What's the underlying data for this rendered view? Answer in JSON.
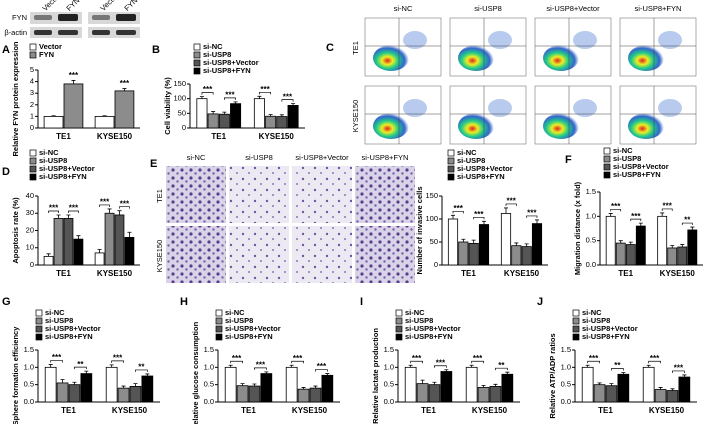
{
  "images": {
    "blot": {
      "panel": "A",
      "rows": [
        "FYN",
        "β-actin"
      ],
      "lanes": [
        "Vector",
        "FYN",
        "Vector",
        "FYN"
      ]
    },
    "flow": {
      "panel": "C",
      "columns": [
        "si-NC",
        "si-USP8",
        "si-USP8+Vector",
        "si-USP8+FYN"
      ],
      "rows": [
        "TE1",
        "KYSE150"
      ]
    },
    "invasion": {
      "panel": "E",
      "columns": [
        "si-NC",
        "si-USP8",
        "si-USP8+Vector",
        "si-USP8+FYN"
      ],
      "rows": [
        "TE1",
        "KYSE150"
      ]
    }
  },
  "chart_data": [
    {
      "type": "bar",
      "panel": "A",
      "ylabel": "Relative FYN protein expression",
      "categories": [
        "TE1",
        "KYSE150"
      ],
      "series": [
        {
          "name": "Vector",
          "color": "#ffffff",
          "values": [
            1,
            1
          ],
          "errors": [
            0.05,
            0.05
          ]
        },
        {
          "name": "FYN",
          "color": "#8c8c8c",
          "values": [
            3.8,
            3.2
          ],
          "errors": [
            0.3,
            0.2
          ]
        }
      ],
      "ylim": [
        0,
        5
      ],
      "yticks": [
        0,
        1,
        2,
        3,
        4,
        5
      ],
      "annotations": [
        {
          "category": 0,
          "bars": [
            1
          ],
          "text": "***"
        },
        {
          "category": 1,
          "bars": [
            1
          ],
          "text": "***"
        }
      ]
    },
    {
      "type": "bar",
      "panel": "B",
      "ylabel": "Cell viability (%)",
      "categories": [
        "TE1",
        "KYSE150"
      ],
      "series": [
        {
          "name": "si-NC",
          "color": "#ffffff",
          "values": [
            100,
            100
          ],
          "errors": [
            7,
            8
          ]
        },
        {
          "name": "si-USP8",
          "color": "#8c8c8c",
          "values": [
            48,
            40
          ],
          "errors": [
            8,
            6
          ]
        },
        {
          "name": "si-USP8+Vector",
          "color": "#555555",
          "values": [
            47,
            39
          ],
          "errors": [
            7,
            6
          ]
        },
        {
          "name": "si-USP8+FYN",
          "color": "#000000",
          "values": [
            83,
            77
          ],
          "errors": [
            6,
            6
          ]
        }
      ],
      "ylim": [
        0,
        150
      ],
      "yticks": [
        0,
        50,
        100,
        150
      ],
      "annotations": [
        {
          "category": 0,
          "bars": [
            0,
            1
          ],
          "text": "***"
        },
        {
          "category": 0,
          "bars": [
            2,
            3
          ],
          "text": "***"
        },
        {
          "category": 1,
          "bars": [
            0,
            1
          ],
          "text": "***"
        },
        {
          "category": 1,
          "bars": [
            2,
            3
          ],
          "text": "***"
        }
      ]
    },
    {
      "type": "bar",
      "panel": "D",
      "ylabel": "Apoptosis rate (%)",
      "categories": [
        "TE1",
        "KYSE150"
      ],
      "series": [
        {
          "name": "si-NC",
          "color": "#ffffff",
          "values": [
            5,
            7
          ],
          "errors": [
            1.5,
            2
          ]
        },
        {
          "name": "si-USP8",
          "color": "#8c8c8c",
          "values": [
            27,
            30
          ],
          "errors": [
            2,
            2.5
          ]
        },
        {
          "name": "si-USP8+Vector",
          "color": "#555555",
          "values": [
            27,
            29
          ],
          "errors": [
            2,
            2.5
          ]
        },
        {
          "name": "si-USP8+FYN",
          "color": "#000000",
          "values": [
            15,
            16
          ],
          "errors": [
            2,
            3
          ]
        }
      ],
      "ylim": [
        0,
        40
      ],
      "yticks": [
        0,
        10,
        20,
        30,
        40
      ],
      "annotations": [
        {
          "category": 0,
          "bars": [
            0,
            1
          ],
          "text": "***"
        },
        {
          "category": 0,
          "bars": [
            2,
            3
          ],
          "text": "***"
        },
        {
          "category": 1,
          "bars": [
            0,
            1
          ],
          "text": "***"
        },
        {
          "category": 1,
          "bars": [
            2,
            3
          ],
          "text": "***"
        }
      ]
    },
    {
      "type": "bar",
      "ylabel": "Number of invasive cells",
      "categories": [
        "TE1",
        "KYSE150"
      ],
      "series": [
        {
          "name": "si-NC",
          "color": "#ffffff",
          "values": [
            100,
            112
          ],
          "errors": [
            8,
            12
          ]
        },
        {
          "name": "si-USP8",
          "color": "#8c8c8c",
          "values": [
            50,
            42
          ],
          "errors": [
            6,
            6
          ]
        },
        {
          "name": "si-USP8+Vector",
          "color": "#555555",
          "values": [
            47,
            40
          ],
          "errors": [
            7,
            6
          ]
        },
        {
          "name": "si-USP8+FYN",
          "color": "#000000",
          "values": [
            88,
            90
          ],
          "errors": [
            7,
            8
          ]
        }
      ],
      "ylim": [
        0,
        150
      ],
      "yticks": [
        0,
        50,
        100,
        150
      ],
      "annotations": [
        {
          "category": 0,
          "bars": [
            0,
            1
          ],
          "text": "***"
        },
        {
          "category": 0,
          "bars": [
            2,
            3
          ],
          "text": "***"
        },
        {
          "category": 1,
          "bars": [
            0,
            1
          ],
          "text": "***"
        },
        {
          "category": 1,
          "bars": [
            2,
            3
          ],
          "text": "***"
        }
      ]
    },
    {
      "type": "bar",
      "panel": "F",
      "ylabel": "Migration distance (x fold)",
      "categories": [
        "TE1",
        "KYSE150"
      ],
      "series": [
        {
          "name": "si-NC",
          "color": "#ffffff",
          "values": [
            1.0,
            1.0
          ],
          "errors": [
            0.06,
            0.07
          ]
        },
        {
          "name": "si-USP8",
          "color": "#8c8c8c",
          "values": [
            0.45,
            0.35
          ],
          "errors": [
            0.05,
            0.05
          ]
        },
        {
          "name": "si-USP8+Vector",
          "color": "#555555",
          "values": [
            0.42,
            0.37
          ],
          "errors": [
            0.05,
            0.05
          ]
        },
        {
          "name": "si-USP8+FYN",
          "color": "#000000",
          "values": [
            0.8,
            0.72
          ],
          "errors": [
            0.06,
            0.06
          ]
        }
      ],
      "ylim": [
        0,
        1.5
      ],
      "yticks": [
        {
          "value": 0,
          "label": "0.0"
        },
        0.5,
        {
          "value": 1,
          "label": "1.0"
        },
        1.5
      ],
      "annotations": [
        {
          "category": 0,
          "bars": [
            0,
            1
          ],
          "text": "***"
        },
        {
          "category": 0,
          "bars": [
            2,
            3
          ],
          "text": "***"
        },
        {
          "category": 1,
          "bars": [
            0,
            1
          ],
          "text": "***"
        },
        {
          "category": 1,
          "bars": [
            2,
            3
          ],
          "text": "**"
        }
      ]
    },
    {
      "type": "bar",
      "panel": "G",
      "ylabel": "Sphere formation efficiency",
      "categories": [
        "TE1",
        "KYSE150"
      ],
      "series": [
        {
          "name": "si-NC",
          "color": "#ffffff",
          "values": [
            1.0,
            1.0
          ],
          "errors": [
            0.08,
            0.07
          ]
        },
        {
          "name": "si-USP8",
          "color": "#8c8c8c",
          "values": [
            0.55,
            0.4
          ],
          "errors": [
            0.1,
            0.06
          ]
        },
        {
          "name": "si-USP8+Vector",
          "color": "#555555",
          "values": [
            0.5,
            0.45
          ],
          "errors": [
            0.07,
            0.08
          ]
        },
        {
          "name": "si-USP8+FYN",
          "color": "#000000",
          "values": [
            0.82,
            0.75
          ],
          "errors": [
            0.07,
            0.06
          ]
        }
      ],
      "ylim": [
        0,
        1.5
      ],
      "yticks": [
        {
          "value": 0,
          "label": "0.0"
        },
        0.5,
        {
          "value": 1,
          "label": "1.0"
        },
        1.5
      ],
      "annotations": [
        {
          "category": 0,
          "bars": [
            0,
            1
          ],
          "text": "***"
        },
        {
          "category": 0,
          "bars": [
            2,
            3
          ],
          "text": "**"
        },
        {
          "category": 1,
          "bars": [
            0,
            1
          ],
          "text": "***"
        },
        {
          "category": 1,
          "bars": [
            2,
            3
          ],
          "text": "**"
        }
      ]
    },
    {
      "type": "bar",
      "panel": "H",
      "ylabel": "Relative glucose consumption",
      "categories": [
        "TE1",
        "KYSE150"
      ],
      "series": [
        {
          "name": "si-NC",
          "color": "#ffffff",
          "values": [
            1.0,
            1.0
          ],
          "errors": [
            0.06,
            0.06
          ]
        },
        {
          "name": "si-USP8",
          "color": "#8c8c8c",
          "values": [
            0.47,
            0.37
          ],
          "errors": [
            0.06,
            0.05
          ]
        },
        {
          "name": "si-USP8+Vector",
          "color": "#555555",
          "values": [
            0.46,
            0.4
          ],
          "errors": [
            0.06,
            0.06
          ]
        },
        {
          "name": "si-USP8+FYN",
          "color": "#000000",
          "values": [
            0.82,
            0.77
          ],
          "errors": [
            0.05,
            0.05
          ]
        }
      ],
      "ylim": [
        0,
        1.5
      ],
      "yticks": [
        {
          "value": 0,
          "label": "0.0"
        },
        0.5,
        {
          "value": 1,
          "label": "1.0"
        },
        1.5
      ],
      "annotations": [
        {
          "category": 0,
          "bars": [
            0,
            1
          ],
          "text": "***"
        },
        {
          "category": 0,
          "bars": [
            2,
            3
          ],
          "text": "***"
        },
        {
          "category": 1,
          "bars": [
            0,
            1
          ],
          "text": "***"
        },
        {
          "category": 1,
          "bars": [
            2,
            3
          ],
          "text": "***"
        }
      ]
    },
    {
      "type": "bar",
      "panel": "I",
      "ylabel": "Relative lactate production",
      "categories": [
        "TE1",
        "KYSE150"
      ],
      "series": [
        {
          "name": "si-NC",
          "color": "#ffffff",
          "values": [
            1.0,
            1.0
          ],
          "errors": [
            0.06,
            0.06
          ]
        },
        {
          "name": "si-USP8",
          "color": "#8c8c8c",
          "values": [
            0.53,
            0.42
          ],
          "errors": [
            0.1,
            0.06
          ]
        },
        {
          "name": "si-USP8+Vector",
          "color": "#555555",
          "values": [
            0.5,
            0.45
          ],
          "errors": [
            0.07,
            0.06
          ]
        },
        {
          "name": "si-USP8+FYN",
          "color": "#000000",
          "values": [
            0.88,
            0.8
          ],
          "errors": [
            0.05,
            0.06
          ]
        }
      ],
      "ylim": [
        0,
        1.5
      ],
      "yticks": [
        {
          "value": 0,
          "label": "0.0"
        },
        0.5,
        {
          "value": 1,
          "label": "1.0"
        },
        1.5
      ],
      "annotations": [
        {
          "category": 0,
          "bars": [
            0,
            1
          ],
          "text": "***"
        },
        {
          "category": 0,
          "bars": [
            2,
            3
          ],
          "text": "***"
        },
        {
          "category": 1,
          "bars": [
            0,
            1
          ],
          "text": "***"
        },
        {
          "category": 1,
          "bars": [
            2,
            3
          ],
          "text": "**"
        }
      ]
    },
    {
      "type": "bar",
      "panel": "J",
      "ylabel": "Relative ATP/ADP ratios",
      "categories": [
        "TE1",
        "KYSE150"
      ],
      "series": [
        {
          "name": "si-NC",
          "color": "#ffffff",
          "values": [
            1.0,
            1.0
          ],
          "errors": [
            0.06,
            0.06
          ]
        },
        {
          "name": "si-USP8",
          "color": "#8c8c8c",
          "values": [
            0.5,
            0.36
          ],
          "errors": [
            0.05,
            0.06
          ]
        },
        {
          "name": "si-USP8+Vector",
          "color": "#555555",
          "values": [
            0.47,
            0.33
          ],
          "errors": [
            0.06,
            0.05
          ]
        },
        {
          "name": "si-USP8+FYN",
          "color": "#000000",
          "values": [
            0.8,
            0.72
          ],
          "errors": [
            0.05,
            0.06
          ]
        }
      ],
      "ylim": [
        0,
        1.5
      ],
      "yticks": [
        {
          "value": 0,
          "label": "0.0"
        },
        0.5,
        {
          "value": 1,
          "label": "1.0"
        },
        1.5
      ],
      "annotations": [
        {
          "category": 0,
          "bars": [
            0,
            1
          ],
          "text": "***"
        },
        {
          "category": 0,
          "bars": [
            2,
            3
          ],
          "text": "**"
        },
        {
          "category": 1,
          "bars": [
            0,
            1
          ],
          "text": "***"
        },
        {
          "category": 1,
          "bars": [
            2,
            3
          ],
          "text": "***"
        }
      ]
    }
  ]
}
